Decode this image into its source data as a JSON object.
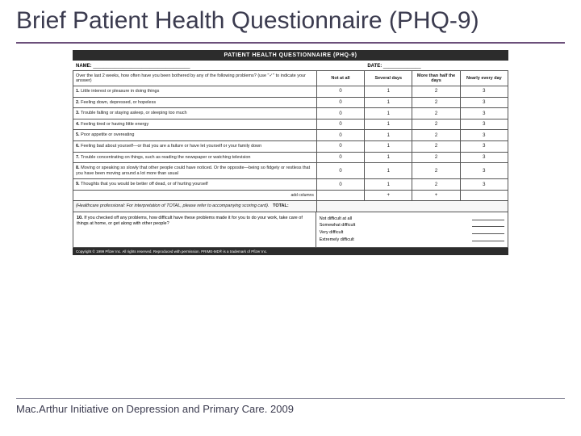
{
  "title": "Brief Patient Health Questionnaire (PHQ-9)",
  "citation": "Mac.Arthur Initiative on Depression and Primary Care. 2009",
  "form": {
    "header": "PATIENT HEALTH QUESTIONNAIRE (PHQ-9)",
    "name_label": "NAME:",
    "date_label": "DATE:",
    "prompt": "Over the last 2 weeks, how often have you been bothered by any of the following problems? (use \"✓\" to indicate your answer)",
    "columns": [
      "Not at all",
      "Several days",
      "More than half the days",
      "Nearly every day"
    ],
    "questions": [
      {
        "n": "1.",
        "t": "Little interest or pleasure in doing things",
        "v": [
          "0",
          "1",
          "2",
          "3"
        ]
      },
      {
        "n": "2.",
        "t": "Feeling down, depressed, or hopeless",
        "v": [
          "0",
          "1",
          "2",
          "3"
        ]
      },
      {
        "n": "3.",
        "t": "Trouble falling or staying asleep, or sleeping too much",
        "v": [
          "0",
          "1",
          "2",
          "3"
        ]
      },
      {
        "n": "4.",
        "t": "Feeling tired or having little energy",
        "v": [
          "0",
          "1",
          "2",
          "3"
        ]
      },
      {
        "n": "5.",
        "t": "Poor appetite or overeating",
        "v": [
          "0",
          "1",
          "2",
          "3"
        ]
      },
      {
        "n": "6.",
        "t": "Feeling bad about yourself—or that you are a failure or have let yourself or your family down",
        "v": [
          "0",
          "1",
          "2",
          "3"
        ]
      },
      {
        "n": "7.",
        "t": "Trouble concentrating on things, such as reading the newspaper or watching television",
        "v": [
          "0",
          "1",
          "2",
          "3"
        ]
      },
      {
        "n": "8.",
        "t": "Moving or speaking so slowly that other people could have noticed. Or the opposite—being so fidgety or restless that you have been moving around a lot more than usual",
        "v": [
          "0",
          "1",
          "2",
          "3"
        ]
      },
      {
        "n": "9.",
        "t": "Thoughts that you would be better off dead, or of hurting yourself",
        "v": [
          "0",
          "1",
          "2",
          "3"
        ]
      }
    ],
    "add_columns_label": "add columns",
    "total_label": "TOTAL:",
    "total_note": "(Healthcare professional: For interpretation of TOTAL, please refer to accompanying scoring card).",
    "add_vals": [
      "",
      "+",
      "+"
    ],
    "q10": {
      "n": "10.",
      "t": "If you checked off any problems, how difficult have these problems made it for you to do your work, take care of things at home, or get along with other people?",
      "options": [
        "Not difficult at all",
        "Somewhat difficult",
        "Very difficult",
        "Extremely difficult"
      ]
    },
    "copyright": "Copyright © 1999 Pfizer Inc. All rights reserved. Reproduced with permission. PRIME-MD® is a trademark of Pfizer Inc."
  },
  "colors": {
    "title": "#3b3b4f",
    "rule": "#6b4f7a",
    "header_bg": "#2c2c2c",
    "border": "#555555"
  }
}
